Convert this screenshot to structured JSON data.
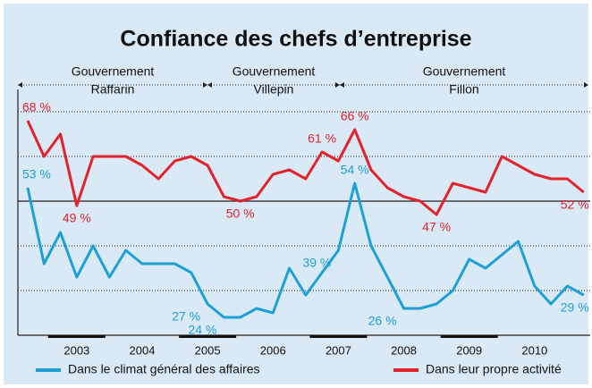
{
  "chart_data": {
    "type": "line",
    "title": "Confiance des chefs d’entreprise",
    "annotations": [
      [
        "Gouvernement",
        "Raffarin"
      ],
      [
        "Gouvernement",
        "Villepin"
      ],
      [
        "Gouvernement",
        "Fillon"
      ]
    ],
    "x": [
      2002.75,
      2003,
      2003.25,
      2003.5,
      2003.75,
      2004,
      2004.25,
      2004.5,
      2004.75,
      2005,
      2005.25,
      2005.5,
      2005.75,
      2006,
      2006.25,
      2006.5,
      2006.75,
      2007,
      2007.25,
      2007.5,
      2007.75,
      2008,
      2008.25,
      2008.5,
      2008.75,
      2009,
      2009.25,
      2009.5,
      2009.75,
      2010,
      2010.25,
      2010.5,
      2010.75,
      2011,
      2011.25
    ],
    "series": [
      {
        "name": "Dans le climat général des affaires",
        "color": "#1ea0d6",
        "values": [
          53,
          36,
          43,
          33,
          40,
          33,
          39,
          36,
          36,
          36,
          34,
          27,
          24,
          24,
          26,
          25,
          35,
          29,
          34,
          39,
          54,
          40,
          33,
          26,
          26,
          27,
          30,
          37,
          35,
          38,
          41,
          31,
          27,
          31,
          29
        ],
        "value_labels": [
          "53 %",
          null,
          null,
          null,
          null,
          null,
          null,
          null,
          null,
          null,
          null,
          "27 %",
          "24 %",
          null,
          null,
          null,
          null,
          null,
          null,
          "39 %",
          "54 %",
          null,
          null,
          "26 %",
          null,
          null,
          null,
          null,
          null,
          null,
          null,
          null,
          null,
          null,
          "29 %"
        ]
      },
      {
        "name": "Dans leur propre activité",
        "color": "#e3232b",
        "values": [
          68,
          60,
          65,
          49,
          60,
          60,
          60,
          58,
          55,
          59,
          60,
          58,
          51,
          50,
          51,
          56,
          57,
          55,
          61,
          59,
          66,
          57,
          53,
          51,
          50,
          47,
          54,
          53,
          52,
          60,
          58,
          56,
          55,
          55,
          52
        ],
        "value_labels": [
          "68 %",
          null,
          null,
          "49 %",
          null,
          null,
          null,
          null,
          null,
          null,
          null,
          null,
          null,
          "50 %",
          null,
          null,
          null,
          null,
          "61 %",
          null,
          "66 %",
          null,
          null,
          null,
          null,
          "47 %",
          null,
          null,
          null,
          null,
          null,
          null,
          null,
          null,
          "52 %"
        ]
      }
    ],
    "xlim": [
      2002.6,
      2011.35
    ],
    "xticks": [
      {
        "value": 2003.5,
        "label": "2003"
      },
      {
        "value": 2004.5,
        "label": "2004"
      },
      {
        "value": 2005.5,
        "label": "2005"
      },
      {
        "value": 2006.5,
        "label": "2006"
      },
      {
        "value": 2007.5,
        "label": "2007"
      },
      {
        "value": 2008.5,
        "label": "2008"
      },
      {
        "value": 2009.5,
        "label": "2009"
      },
      {
        "value": 2010.5,
        "label": "2010"
      }
    ],
    "ylim": [
      20,
      75
    ],
    "yticks": [
      30,
      40,
      50,
      60,
      70
    ],
    "reference_line": 50,
    "grid": true,
    "legend": "bottom"
  }
}
